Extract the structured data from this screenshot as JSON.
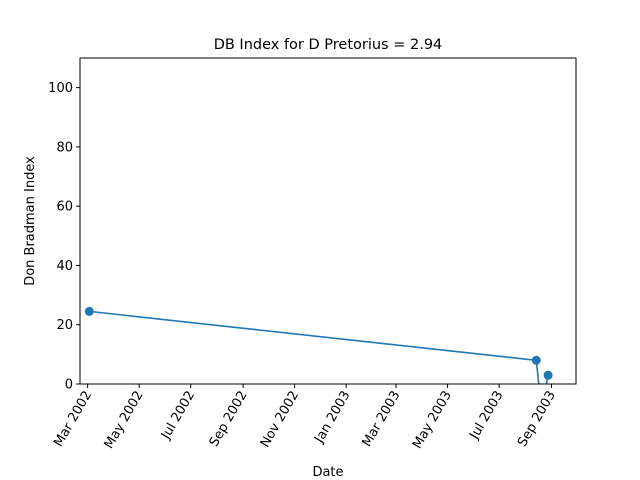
{
  "chart_data": {
    "type": "line",
    "title": "DB Index for D Pretorius = 2.94",
    "xlabel": "Date",
    "ylabel": "Don Bradman Index",
    "ylim": [
      0,
      110
    ],
    "yticks": [
      0,
      20,
      40,
      60,
      80,
      100
    ],
    "xlim": [
      "2002-02-20",
      "2003-09-30"
    ],
    "xticks": [
      {
        "date": "2002-03-01",
        "label": "Mar 2002"
      },
      {
        "date": "2002-05-01",
        "label": "May 2002"
      },
      {
        "date": "2002-07-01",
        "label": "Jul 2002"
      },
      {
        "date": "2002-09-01",
        "label": "Sep 2002"
      },
      {
        "date": "2002-11-01",
        "label": "Nov 2002"
      },
      {
        "date": "2003-01-01",
        "label": "Jan 2003"
      },
      {
        "date": "2003-03-01",
        "label": "Mar 2003"
      },
      {
        "date": "2003-05-01",
        "label": "May 2003"
      },
      {
        "date": "2003-07-01",
        "label": "Jul 2003"
      },
      {
        "date": "2003-09-01",
        "label": "Sep 2003"
      }
    ],
    "series": [
      {
        "color": "#1f77b4",
        "points": [
          {
            "x": "2002-03-03",
            "y": 24.5
          },
          {
            "x": "2003-08-14",
            "y": 8.0
          },
          {
            "x": "2003-08-20",
            "y": -8.0
          },
          {
            "x": "2003-08-28",
            "y": 2.94
          }
        ]
      }
    ],
    "grid": false,
    "legend": "none"
  }
}
